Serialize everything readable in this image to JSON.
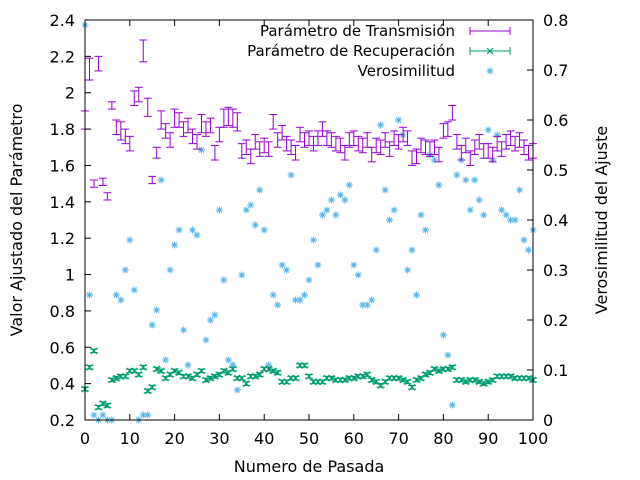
{
  "chart_data": {
    "type": "scatter",
    "xlabel": "Numero de Pasada",
    "ylabel": "Valor Ajustado del Parámetro",
    "y2label": "Verosimilitud del Ajuste",
    "xlim": [
      0,
      100
    ],
    "ylim": [
      0.2,
      2.4
    ],
    "y2lim": [
      0,
      0.8
    ],
    "xticks": [
      0,
      10,
      20,
      30,
      40,
      50,
      60,
      70,
      80,
      90,
      100
    ],
    "yticks": [
      0.2,
      0.4,
      0.6,
      0.8,
      1,
      1.2,
      1.4,
      1.6,
      1.8,
      2,
      2.2,
      2.4
    ],
    "y2ticks": [
      0,
      0.1,
      0.2,
      0.3,
      0.4,
      0.5,
      0.6,
      0.7,
      0.8
    ],
    "grid": false,
    "legend_position": "top-right",
    "series": [
      {
        "name": "Parámetro de Transmisión",
        "axis": "y",
        "style": "errorbars",
        "color": "#9400d3",
        "x": [
          0,
          1,
          2,
          3,
          4,
          5,
          6,
          7,
          8,
          9,
          10,
          11,
          12,
          13,
          14,
          15,
          16,
          17,
          18,
          19,
          20,
          21,
          22,
          23,
          24,
          25,
          26,
          27,
          28,
          29,
          30,
          31,
          32,
          33,
          34,
          35,
          36,
          37,
          38,
          39,
          40,
          41,
          42,
          43,
          44,
          45,
          46,
          47,
          48,
          49,
          50,
          51,
          52,
          53,
          54,
          55,
          56,
          57,
          58,
          59,
          60,
          61,
          62,
          63,
          64,
          65,
          66,
          67,
          68,
          69,
          70,
          71,
          72,
          73,
          74,
          75,
          76,
          77,
          78,
          79,
          80,
          81,
          82,
          83,
          84,
          85,
          86,
          87,
          88,
          89,
          90,
          91,
          92,
          93,
          94,
          95,
          96,
          97,
          98,
          99,
          100
        ],
        "y": [
          1.85,
          2.13,
          1.5,
          2.16,
          1.51,
          1.43,
          1.93,
          1.81,
          1.79,
          1.76,
          1.72,
          1.97,
          1.99,
          2.23,
          1.92,
          1.52,
          1.67,
          1.85,
          1.79,
          1.74,
          1.86,
          1.85,
          1.8,
          1.82,
          1.76,
          1.73,
          1.83,
          1.8,
          1.82,
          1.67,
          1.77,
          1.86,
          1.87,
          1.86,
          1.84,
          1.68,
          1.7,
          1.65,
          1.73,
          1.69,
          1.71,
          1.69,
          1.84,
          1.74,
          1.78,
          1.72,
          1.7,
          1.67,
          1.77,
          1.74,
          1.75,
          1.72,
          1.75,
          1.8,
          1.75,
          1.74,
          1.72,
          1.71,
          1.67,
          1.74,
          1.75,
          1.72,
          1.71,
          1.74,
          1.66,
          1.71,
          1.7,
          1.74,
          1.69,
          1.75,
          1.73,
          1.77,
          1.75,
          1.64,
          1.65,
          1.71,
          1.7,
          1.69,
          1.7,
          1.66,
          1.79,
          1.8,
          1.89,
          1.73,
          1.67,
          1.71,
          1.64,
          1.7,
          1.73,
          1.68,
          1.68,
          1.66,
          1.72,
          1.69,
          1.73,
          1.75,
          1.72,
          1.74,
          1.7,
          1.67,
          1.68
        ],
        "err": [
          0.05,
          0.06,
          0.02,
          0.04,
          0.02,
          0.02,
          0.02,
          0.04,
          0.05,
          0.04,
          0.04,
          0.04,
          0.04,
          0.06,
          0.05,
          0.02,
          0.03,
          0.05,
          0.04,
          0.04,
          0.05,
          0.04,
          0.04,
          0.04,
          0.04,
          0.04,
          0.05,
          0.04,
          0.04,
          0.04,
          0.04,
          0.05,
          0.05,
          0.05,
          0.05,
          0.04,
          0.04,
          0.04,
          0.04,
          0.04,
          0.04,
          0.04,
          0.04,
          0.04,
          0.04,
          0.04,
          0.04,
          0.04,
          0.04,
          0.04,
          0.04,
          0.04,
          0.04,
          0.04,
          0.04,
          0.04,
          0.04,
          0.04,
          0.04,
          0.04,
          0.04,
          0.04,
          0.04,
          0.04,
          0.04,
          0.04,
          0.04,
          0.04,
          0.04,
          0.04,
          0.04,
          0.04,
          0.04,
          0.04,
          0.04,
          0.04,
          0.04,
          0.04,
          0.04,
          0.04,
          0.04,
          0.04,
          0.04,
          0.04,
          0.04,
          0.04,
          0.04,
          0.04,
          0.04,
          0.04,
          0.04,
          0.04,
          0.04,
          0.04,
          0.04,
          0.04,
          0.04,
          0.04,
          0.04,
          0.04,
          0.04
        ]
      },
      {
        "name": "Parámetro de Recuperación",
        "axis": "y",
        "style": "errorbars",
        "color": "#009e73",
        "x": [
          0,
          1,
          2,
          3,
          4,
          5,
          6,
          7,
          8,
          9,
          10,
          11,
          12,
          13,
          14,
          15,
          16,
          17,
          18,
          19,
          20,
          21,
          22,
          23,
          24,
          25,
          26,
          27,
          28,
          29,
          30,
          31,
          32,
          33,
          34,
          35,
          36,
          37,
          38,
          39,
          40,
          41,
          42,
          43,
          44,
          45,
          46,
          47,
          48,
          49,
          50,
          51,
          52,
          53,
          54,
          55,
          56,
          57,
          58,
          59,
          60,
          61,
          62,
          63,
          64,
          65,
          66,
          67,
          68,
          69,
          70,
          71,
          72,
          73,
          74,
          75,
          76,
          77,
          78,
          79,
          80,
          81,
          82,
          83,
          84,
          85,
          86,
          87,
          88,
          89,
          90,
          91,
          92,
          93,
          94,
          95,
          96,
          97,
          98,
          99,
          100
        ],
        "y": [
          0.37,
          0.49,
          0.58,
          0.27,
          0.29,
          0.28,
          0.42,
          0.43,
          0.44,
          0.44,
          0.47,
          0.47,
          0.45,
          0.49,
          0.36,
          0.38,
          0.48,
          0.47,
          0.43,
          0.45,
          0.47,
          0.46,
          0.44,
          0.44,
          0.43,
          0.45,
          0.47,
          0.42,
          0.43,
          0.44,
          0.45,
          0.47,
          0.46,
          0.48,
          0.43,
          0.43,
          0.4,
          0.44,
          0.44,
          0.45,
          0.48,
          0.48,
          0.47,
          0.46,
          0.41,
          0.41,
          0.43,
          0.43,
          0.5,
          0.5,
          0.44,
          0.41,
          0.41,
          0.41,
          0.43,
          0.43,
          0.42,
          0.42,
          0.42,
          0.43,
          0.43,
          0.44,
          0.44,
          0.45,
          0.42,
          0.41,
          0.39,
          0.41,
          0.43,
          0.43,
          0.43,
          0.42,
          0.41,
          0.38,
          0.42,
          0.43,
          0.45,
          0.46,
          0.48,
          0.47,
          0.48,
          0.48,
          0.49,
          0.42,
          0.42,
          0.41,
          0.42,
          0.42,
          0.41,
          0.4,
          0.41,
          0.42,
          0.44,
          0.44,
          0.44,
          0.44,
          0.43,
          0.43,
          0.43,
          0.43,
          0.42
        ],
        "err": [
          0.01,
          0.01,
          0.01,
          0.01,
          0.01,
          0.01,
          0.01,
          0.01,
          0.01,
          0.01,
          0.01,
          0.01,
          0.01,
          0.01,
          0.01,
          0.01,
          0.01,
          0.01,
          0.01,
          0.01,
          0.01,
          0.01,
          0.01,
          0.01,
          0.01,
          0.01,
          0.01,
          0.01,
          0.01,
          0.01,
          0.01,
          0.01,
          0.01,
          0.01,
          0.01,
          0.01,
          0.01,
          0.01,
          0.01,
          0.01,
          0.01,
          0.01,
          0.01,
          0.01,
          0.01,
          0.01,
          0.01,
          0.01,
          0.01,
          0.01,
          0.01,
          0.01,
          0.01,
          0.01,
          0.01,
          0.01,
          0.01,
          0.01,
          0.01,
          0.01,
          0.01,
          0.01,
          0.01,
          0.01,
          0.01,
          0.01,
          0.01,
          0.01,
          0.01,
          0.01,
          0.01,
          0.01,
          0.01,
          0.01,
          0.01,
          0.01,
          0.01,
          0.01,
          0.01,
          0.01,
          0.01,
          0.01,
          0.01,
          0.01,
          0.01,
          0.01,
          0.01,
          0.01,
          0.01,
          0.01,
          0.01,
          0.01,
          0.01,
          0.01,
          0.01,
          0.01,
          0.01,
          0.01,
          0.01,
          0.01,
          0.01
        ]
      },
      {
        "name": "Verosimilitud",
        "axis": "y2",
        "style": "points",
        "marker": "*",
        "color": "#56b4e9",
        "x": [
          0,
          1,
          2,
          3,
          4,
          5,
          6,
          7,
          8,
          9,
          10,
          11,
          12,
          13,
          14,
          15,
          16,
          17,
          18,
          19,
          20,
          21,
          22,
          23,
          24,
          25,
          26,
          27,
          28,
          29,
          30,
          31,
          32,
          33,
          34,
          35,
          36,
          37,
          38,
          39,
          40,
          41,
          42,
          43,
          44,
          45,
          46,
          47,
          48,
          49,
          50,
          51,
          52,
          53,
          54,
          55,
          56,
          57,
          58,
          59,
          60,
          61,
          62,
          63,
          64,
          65,
          66,
          67,
          68,
          69,
          70,
          71,
          72,
          73,
          74,
          75,
          76,
          77,
          78,
          79,
          80,
          81,
          82,
          83,
          84,
          85,
          86,
          87,
          88,
          89,
          90,
          91,
          92,
          93,
          94,
          95,
          96,
          97,
          98,
          99,
          100
        ],
        "y": [
          0.79,
          0.25,
          0.01,
          0.0,
          0.01,
          0.0,
          0.0,
          0.25,
          0.24,
          0.3,
          0.36,
          0.26,
          0.0,
          0.01,
          0.01,
          0.19,
          0.22,
          0.48,
          0.12,
          0.3,
          0.35,
          0.38,
          0.18,
          0.11,
          0.38,
          0.37,
          0.54,
          0.16,
          0.2,
          0.21,
          0.42,
          0.28,
          0.12,
          0.11,
          0.06,
          0.29,
          0.42,
          0.43,
          0.39,
          0.46,
          0.38,
          0.11,
          0.25,
          0.23,
          0.31,
          0.3,
          0.49,
          0.24,
          0.24,
          0.25,
          0.28,
          0.36,
          0.31,
          0.41,
          0.42,
          0.44,
          0.41,
          0.45,
          0.44,
          0.47,
          0.31,
          0.29,
          0.23,
          0.23,
          0.24,
          0.34,
          0.59,
          0.46,
          0.4,
          0.42,
          0.6,
          0.57,
          0.3,
          0.34,
          0.25,
          0.41,
          0.38,
          0.53,
          0.52,
          0.47,
          0.17,
          0.13,
          0.03,
          0.49,
          0.52,
          0.48,
          0.42,
          0.48,
          0.44,
          0.41,
          0.58,
          0.52,
          0.57,
          0.42,
          0.41,
          0.4,
          0.4,
          0.46,
          0.36,
          0.34,
          0.38
        ]
      }
    ]
  }
}
